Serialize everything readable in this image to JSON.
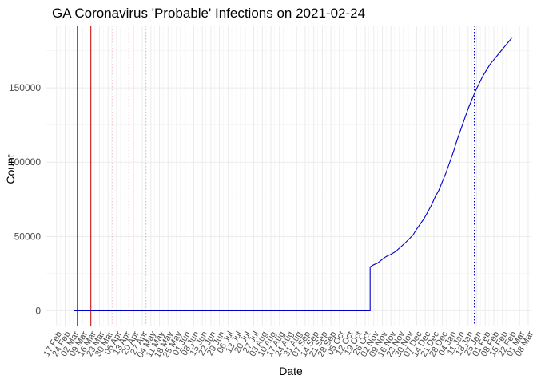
{
  "chart_data": {
    "type": "line",
    "title": "GA Coronavirus 'Probable' Infections on 2021-02-24",
    "xlabel": "Date",
    "ylabel": "Count",
    "x_range": [
      "2020-02-08",
      "2021-03-10"
    ],
    "ylim": [
      -10000,
      192000
    ],
    "y_ticks": [
      0,
      50000,
      100000,
      150000
    ],
    "y_tick_labels": [
      "0",
      "50000",
      "100000",
      "150000"
    ],
    "x_ticks": [
      "2020-02-17",
      "2020-02-24",
      "2020-03-02",
      "2020-03-09",
      "2020-03-16",
      "2020-03-23",
      "2020-03-30",
      "2020-04-06",
      "2020-04-13",
      "2020-04-20",
      "2020-04-27",
      "2020-05-04",
      "2020-05-11",
      "2020-05-18",
      "2020-05-25",
      "2020-06-01",
      "2020-06-08",
      "2020-06-15",
      "2020-06-22",
      "2020-06-29",
      "2020-07-06",
      "2020-07-13",
      "2020-07-20",
      "2020-07-27",
      "2020-08-03",
      "2020-08-10",
      "2020-08-17",
      "2020-08-24",
      "2020-08-31",
      "2020-09-07",
      "2020-09-14",
      "2020-09-21",
      "2020-09-28",
      "2020-10-05",
      "2020-10-12",
      "2020-10-19",
      "2020-10-26",
      "2020-11-02",
      "2020-11-09",
      "2020-11-16",
      "2020-11-23",
      "2020-11-30",
      "2020-12-07",
      "2020-12-14",
      "2020-12-21",
      "2020-12-28",
      "2021-01-04",
      "2021-01-11",
      "2021-01-18",
      "2021-01-25",
      "2021-02-01",
      "2021-02-08",
      "2021-02-15",
      "2021-02-22",
      "2021-03-01",
      "2021-03-08"
    ],
    "x_tick_labels": [
      "17 Feb",
      "24 Feb",
      "02 Mar",
      "09 Mar",
      "16 Mar",
      "23 Mar",
      "30 Mar",
      "06 Apr",
      "13 Apr",
      "20 Apr",
      "27 Apr",
      "04 May",
      "11 May",
      "18 May",
      "25 May",
      "01 Jun",
      "08 Jun",
      "15 Jun",
      "22 Jun",
      "29 Jun",
      "06 Jul",
      "13 Jul",
      "20 Jul",
      "27 Jul",
      "03 Aug",
      "10 Aug",
      "17 Aug",
      "24 Aug",
      "31 Aug",
      "07 Sep",
      "14 Sep",
      "21 Sep",
      "28 Sep",
      "05 Oct",
      "12 Oct",
      "19 Oct",
      "26 Oct",
      "02 Nov",
      "09 Nov",
      "16 Nov",
      "23 Nov",
      "30 Nov",
      "07 Dec",
      "14 Dec",
      "21 Dec",
      "28 Dec",
      "04 Jan",
      "11 Jan",
      "18 Jan",
      "25 Jan",
      "01 Feb",
      "08 Feb",
      "15 Feb",
      "22 Feb",
      "01 Mar",
      "08 Mar"
    ],
    "grid": true,
    "series": [
      {
        "color": "#0000cc",
        "points": [
          [
            "2020-03-02",
            0
          ],
          [
            "2020-10-30",
            0
          ],
          [
            "2020-10-30",
            29500
          ],
          [
            "2020-11-02",
            31000
          ],
          [
            "2020-11-05",
            32000
          ],
          [
            "2020-11-08",
            34000
          ],
          [
            "2020-11-12",
            36500
          ],
          [
            "2020-11-16",
            38000
          ],
          [
            "2020-11-20",
            40000
          ],
          [
            "2020-11-24",
            43000
          ],
          [
            "2020-11-28",
            46000
          ],
          [
            "2020-12-01",
            48500
          ],
          [
            "2020-12-04",
            51000
          ],
          [
            "2020-12-07",
            55000
          ],
          [
            "2020-12-10",
            58500
          ],
          [
            "2020-12-13",
            62000
          ],
          [
            "2020-12-16",
            66500
          ],
          [
            "2020-12-19",
            71000
          ],
          [
            "2020-12-22",
            76500
          ],
          [
            "2020-12-25",
            81000
          ],
          [
            "2020-12-28",
            87000
          ],
          [
            "2020-12-31",
            93000
          ],
          [
            "2021-01-03",
            100000
          ],
          [
            "2021-01-06",
            107000
          ],
          [
            "2021-01-09",
            115000
          ],
          [
            "2021-01-12",
            122000
          ],
          [
            "2021-01-15",
            129000
          ],
          [
            "2021-01-18",
            136000
          ],
          [
            "2021-01-21",
            142000
          ],
          [
            "2021-01-24",
            148000
          ],
          [
            "2021-01-27",
            153000
          ],
          [
            "2021-01-30",
            158000
          ],
          [
            "2021-02-02",
            162000
          ],
          [
            "2021-02-05",
            166000
          ],
          [
            "2021-02-08",
            169000
          ],
          [
            "2021-02-11",
            172000
          ],
          [
            "2021-02-14",
            175000
          ],
          [
            "2021-02-17",
            178000
          ],
          [
            "2021-02-20",
            181000
          ],
          [
            "2021-02-23",
            184000
          ]
        ]
      }
    ],
    "reference_lines": [
      {
        "x": "2020-03-05",
        "color": "#0000cc",
        "style": "solid"
      },
      {
        "x": "2020-03-16",
        "color": "#cc0000",
        "style": "solid"
      },
      {
        "x": "2020-04-03",
        "color": "#cc0000",
        "style": "dotted"
      },
      {
        "x": "2020-04-16",
        "color": "#f4a6a6",
        "style": "dotted"
      },
      {
        "x": "2020-04-30",
        "color": "#f4a6a6",
        "style": "dotted"
      },
      {
        "x": "2021-01-23",
        "color": "#0000cc",
        "style": "dotted"
      }
    ]
  }
}
